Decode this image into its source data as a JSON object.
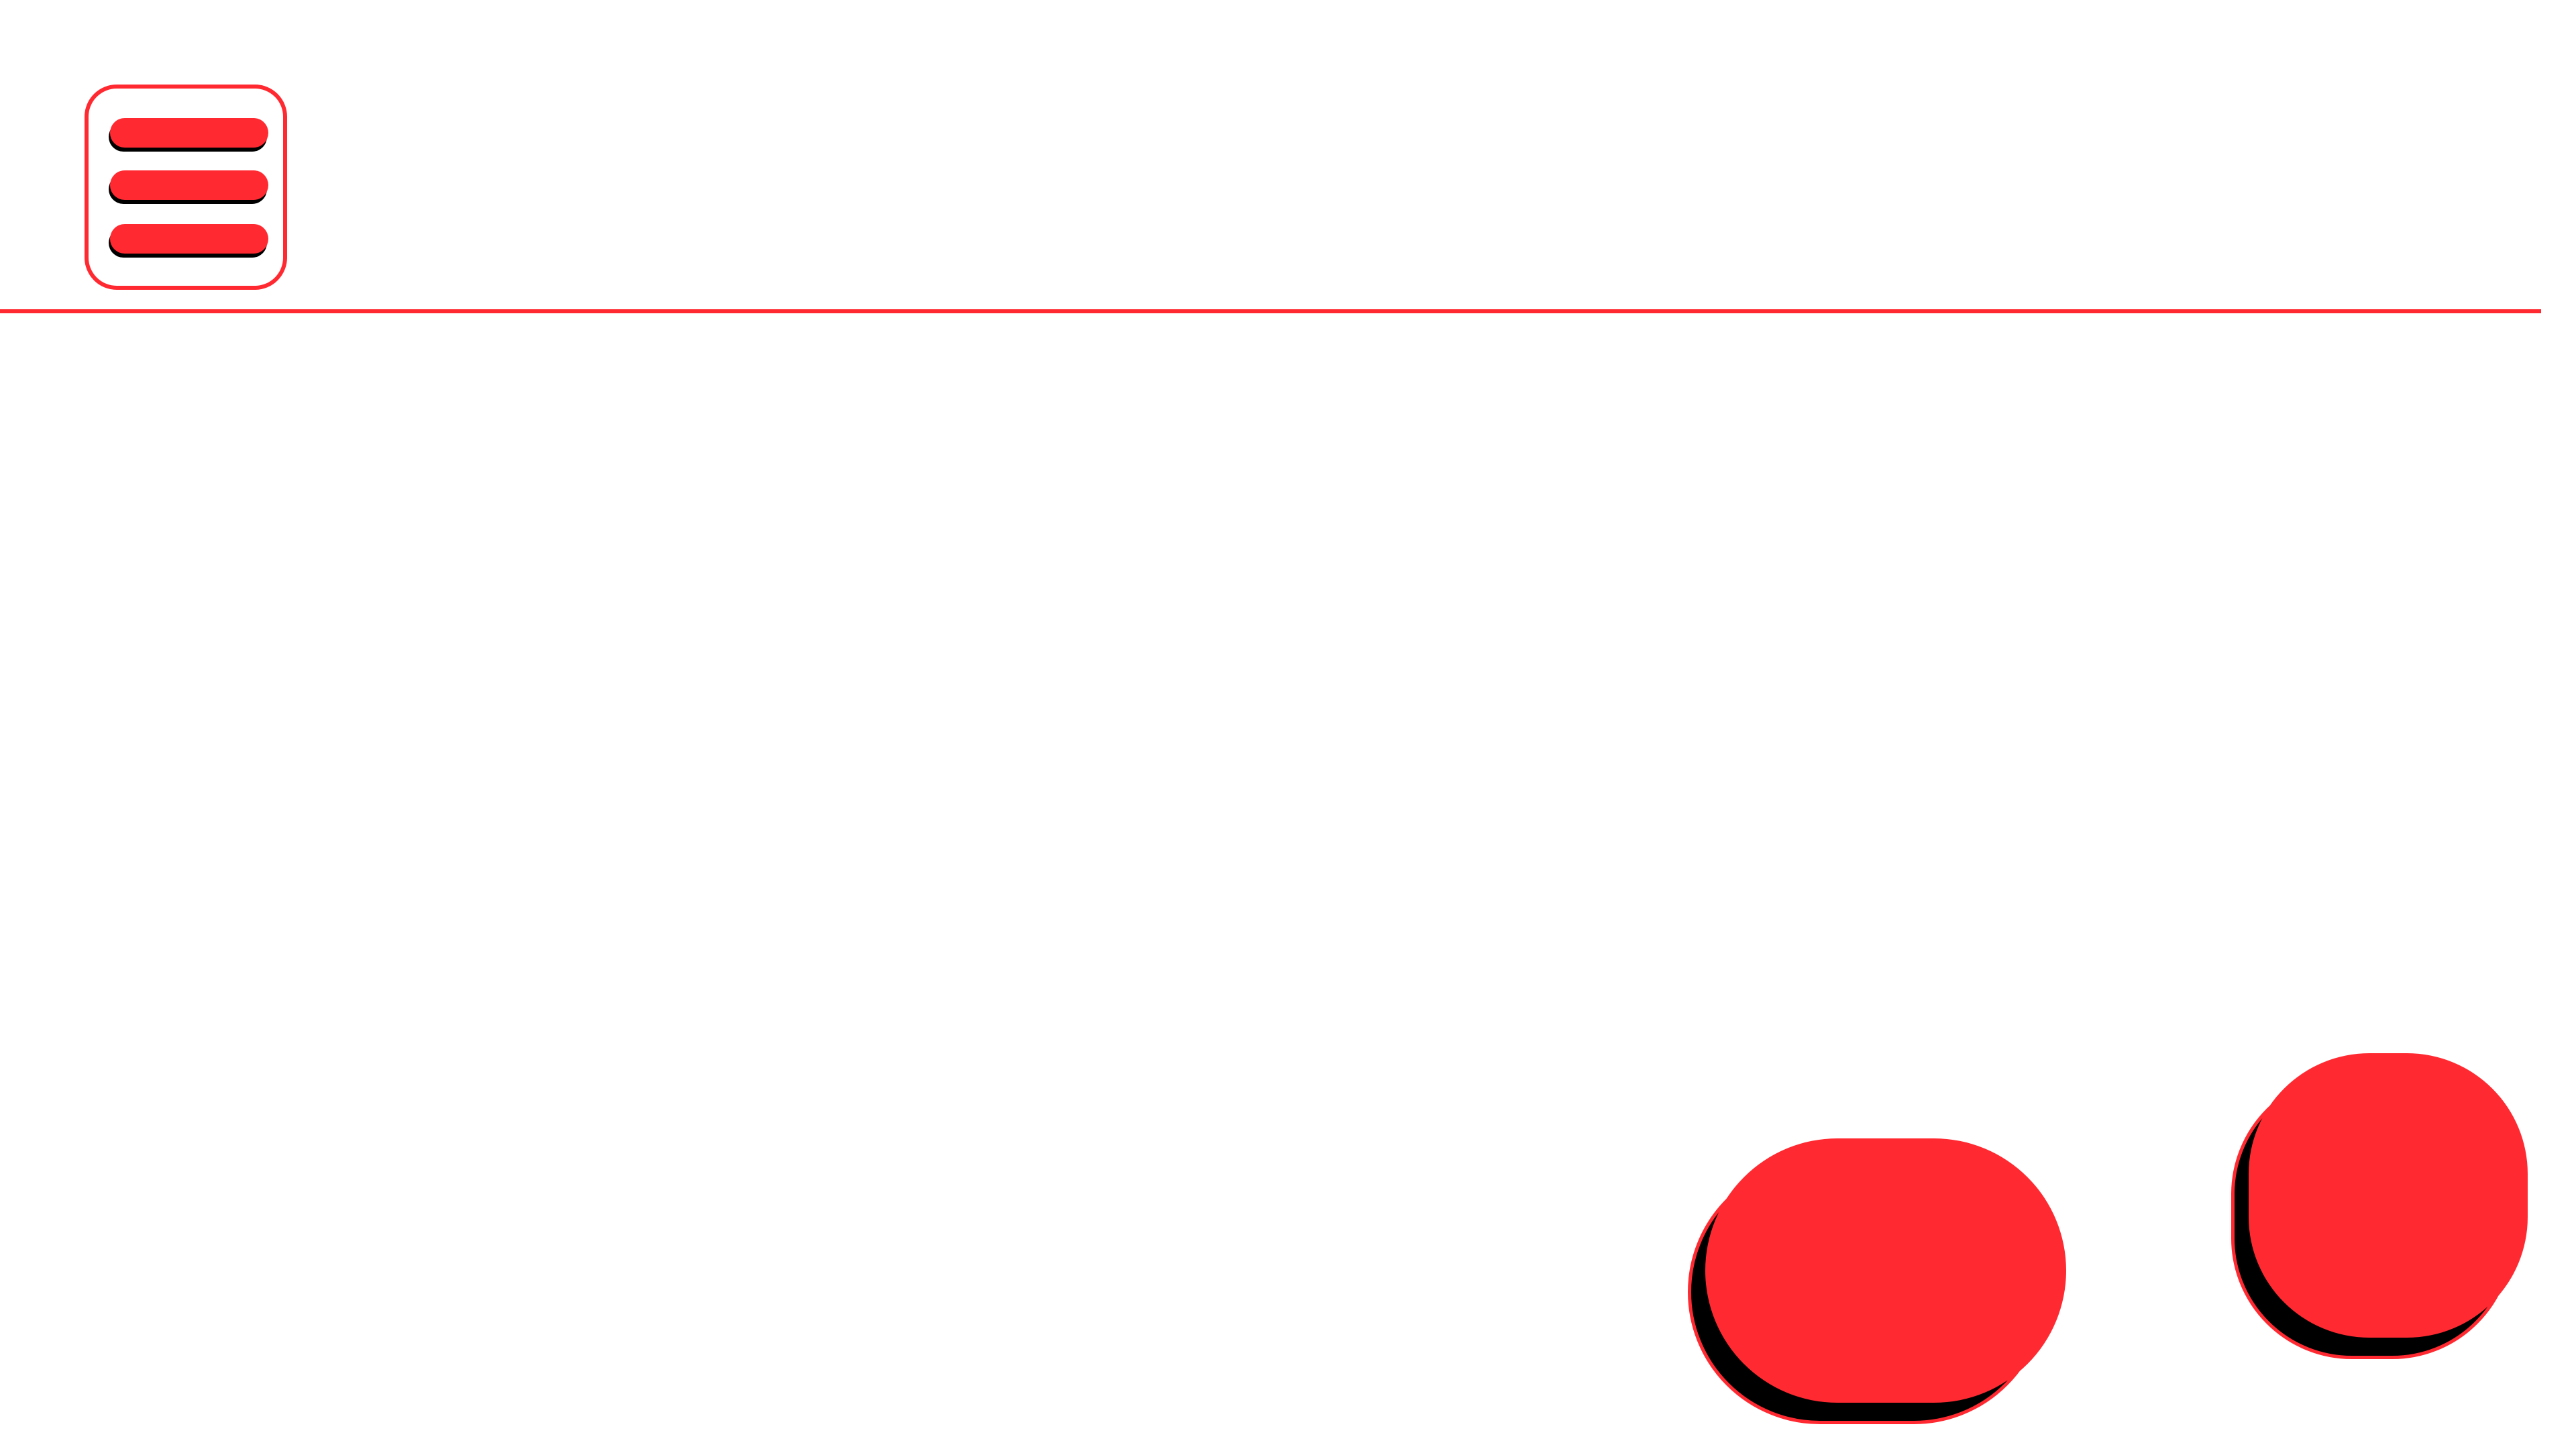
{
  "header": {
    "menu_button": {
      "icon": "hamburger-menu-icon",
      "label": ""
    }
  },
  "controls": {
    "wide_button": {
      "label": ""
    },
    "square_button": {
      "label": ""
    }
  },
  "colors": {
    "accent": "#ff2a31",
    "shadow": "#000000",
    "background": "#ffffff"
  }
}
